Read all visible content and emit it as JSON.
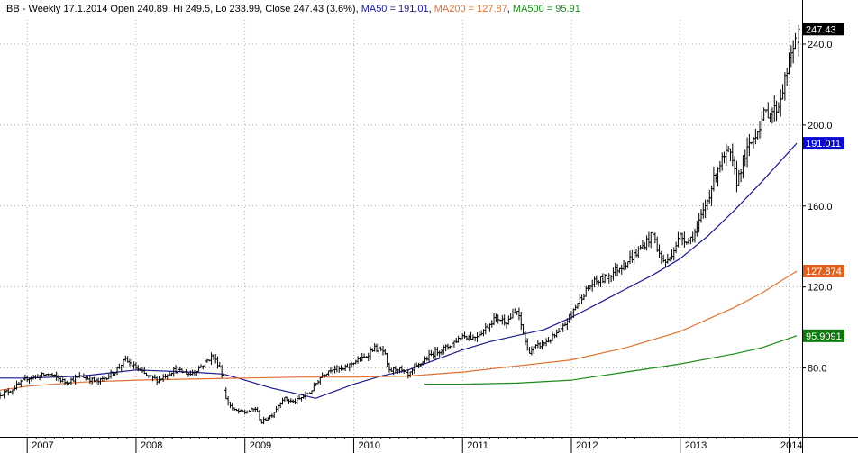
{
  "header": {
    "symbol": "IBB",
    "summary": "IBB - Weekly 17.1.2014 Open 240.89, Hi 249.5, Lo 233.99, Close 247.43 (3.6%)",
    "ma50_label": "MA50 = 191.01",
    "ma200_label": "MA200 = 127.87",
    "ma500_label": "MA500 = 95.91",
    "sep1": ", ",
    "sep2": ", "
  },
  "colors": {
    "price": "#000000",
    "ma50": "#1a1a8c",
    "ma200": "#e07030",
    "ma500": "#1a8a1a",
    "last_price_badge": "#000000",
    "ma50_badge": "#0a0ad0",
    "ma200_badge": "#e06020",
    "ma500_badge": "#0a7a0a",
    "grid": "#8a8a8a"
  },
  "badges": {
    "last_price": "247.43",
    "ma50": "191.011",
    "ma200": "127.874",
    "ma500": "95.9091"
  },
  "chart_data": {
    "type": "line",
    "subtype": "weekly-ohlc-bars",
    "title": "IBB - Weekly 17.1.2014 Open 240.89, Hi 249.5, Lo 233.99, Close 247.43 (3.6%)",
    "xlabel": "",
    "ylabel": "",
    "x_range": [
      2006.75,
      2014.12
    ],
    "ylim": [
      46,
      252
    ],
    "y_ticks": [
      80.0,
      120.0,
      160.0,
      200.0,
      240.0
    ],
    "y_tick_labels": [
      "80.0",
      "120.0",
      "160.0",
      "200.0",
      "240.0"
    ],
    "x_tick_labels": [
      "2007",
      "2008",
      "2009",
      "2010",
      "2011",
      "2012",
      "2013",
      "2014"
    ],
    "grid": true,
    "legend": "top-left header",
    "last_bar": {
      "date": "17.1.2014",
      "open": 240.89,
      "high": 249.5,
      "low": 233.99,
      "close": 247.43,
      "change_pct": 3.6
    },
    "price_path": [
      [
        2006.75,
        67
      ],
      [
        2006.85,
        69
      ],
      [
        2007.0,
        75
      ],
      [
        2007.2,
        77
      ],
      [
        2007.35,
        73
      ],
      [
        2007.5,
        76
      ],
      [
        2007.65,
        73
      ],
      [
        2007.8,
        78
      ],
      [
        2007.9,
        84
      ],
      [
        2008.0,
        80
      ],
      [
        2008.1,
        76
      ],
      [
        2008.2,
        74
      ],
      [
        2008.35,
        79
      ],
      [
        2008.5,
        77
      ],
      [
        2008.6,
        81
      ],
      [
        2008.7,
        86
      ],
      [
        2008.78,
        80
      ],
      [
        2008.82,
        65
      ],
      [
        2008.9,
        59
      ],
      [
        2009.0,
        58
      ],
      [
        2009.1,
        60
      ],
      [
        2009.15,
        53
      ],
      [
        2009.25,
        57
      ],
      [
        2009.35,
        65
      ],
      [
        2009.45,
        63
      ],
      [
        2009.6,
        68
      ],
      [
        2009.7,
        76
      ],
      [
        2009.8,
        80
      ],
      [
        2009.9,
        79
      ],
      [
        2010.0,
        83
      ],
      [
        2010.1,
        85
      ],
      [
        2010.18,
        90
      ],
      [
        2010.28,
        88
      ],
      [
        2010.32,
        78
      ],
      [
        2010.4,
        80
      ],
      [
        2010.5,
        76
      ],
      [
        2010.55,
        79
      ],
      [
        2010.65,
        84
      ],
      [
        2010.75,
        88
      ],
      [
        2010.85,
        90
      ],
      [
        2011.0,
        96
      ],
      [
        2011.1,
        95
      ],
      [
        2011.2,
        99
      ],
      [
        2011.3,
        105
      ],
      [
        2011.4,
        103
      ],
      [
        2011.5,
        108
      ],
      [
        2011.55,
        99
      ],
      [
        2011.6,
        88
      ],
      [
        2011.7,
        91
      ],
      [
        2011.8,
        94
      ],
      [
        2011.9,
        98
      ],
      [
        2012.0,
        107
      ],
      [
        2012.1,
        116
      ],
      [
        2012.2,
        122
      ],
      [
        2012.3,
        124
      ],
      [
        2012.4,
        128
      ],
      [
        2012.5,
        132
      ],
      [
        2012.6,
        137
      ],
      [
        2012.7,
        143
      ],
      [
        2012.75,
        146
      ],
      [
        2012.82,
        134
      ],
      [
        2012.88,
        132
      ],
      [
        2012.95,
        140
      ],
      [
        2013.0,
        145
      ],
      [
        2013.08,
        143
      ],
      [
        2013.15,
        148
      ],
      [
        2013.25,
        163
      ],
      [
        2013.35,
        180
      ],
      [
        2013.45,
        187
      ],
      [
        2013.52,
        172
      ],
      [
        2013.58,
        183
      ],
      [
        2013.65,
        191
      ],
      [
        2013.72,
        199
      ],
      [
        2013.78,
        206
      ],
      [
        2013.85,
        207
      ],
      [
        2013.9,
        209
      ],
      [
        2013.96,
        222
      ],
      [
        2014.03,
        237
      ],
      [
        2014.07,
        247.43
      ]
    ],
    "series": [
      {
        "name": "MA50",
        "color": "#1a1a8c",
        "points": [
          [
            2006.75,
            75
          ],
          [
            2007.0,
            75
          ],
          [
            2007.5,
            76
          ],
          [
            2008.0,
            79
          ],
          [
            2008.5,
            78
          ],
          [
            2008.8,
            77
          ],
          [
            2009.0,
            74
          ],
          [
            2009.25,
            70
          ],
          [
            2009.5,
            67
          ],
          [
            2009.65,
            65
          ],
          [
            2009.8,
            68
          ],
          [
            2010.0,
            72
          ],
          [
            2010.25,
            76
          ],
          [
            2010.5,
            79
          ],
          [
            2010.75,
            84
          ],
          [
            2011.0,
            89
          ],
          [
            2011.25,
            93
          ],
          [
            2011.5,
            96
          ],
          [
            2011.75,
            99
          ],
          [
            2012.0,
            105
          ],
          [
            2012.25,
            112
          ],
          [
            2012.5,
            119
          ],
          [
            2012.75,
            126
          ],
          [
            2013.0,
            134
          ],
          [
            2013.25,
            145
          ],
          [
            2013.5,
            158
          ],
          [
            2013.75,
            172
          ],
          [
            2014.07,
            191.011
          ]
        ]
      },
      {
        "name": "MA200",
        "color": "#e07030",
        "points": [
          [
            2006.75,
            69
          ],
          [
            2007.0,
            71
          ],
          [
            2007.5,
            73
          ],
          [
            2008.0,
            74
          ],
          [
            2008.5,
            74.5
          ],
          [
            2009.0,
            75
          ],
          [
            2009.5,
            75.5
          ],
          [
            2010.0,
            75.5
          ],
          [
            2010.5,
            76
          ],
          [
            2011.0,
            78
          ],
          [
            2011.5,
            81
          ],
          [
            2012.0,
            84
          ],
          [
            2012.5,
            90
          ],
          [
            2013.0,
            98
          ],
          [
            2013.5,
            110
          ],
          [
            2013.75,
            117
          ],
          [
            2014.07,
            127.874
          ]
        ]
      },
      {
        "name": "MA500",
        "color": "#1a8a1a",
        "points": [
          [
            2010.65,
            72
          ],
          [
            2011.0,
            72
          ],
          [
            2011.5,
            72.5
          ],
          [
            2012.0,
            74
          ],
          [
            2012.5,
            78
          ],
          [
            2013.0,
            82
          ],
          [
            2013.5,
            87
          ],
          [
            2013.75,
            90
          ],
          [
            2014.07,
            95.9091
          ]
        ]
      }
    ]
  }
}
